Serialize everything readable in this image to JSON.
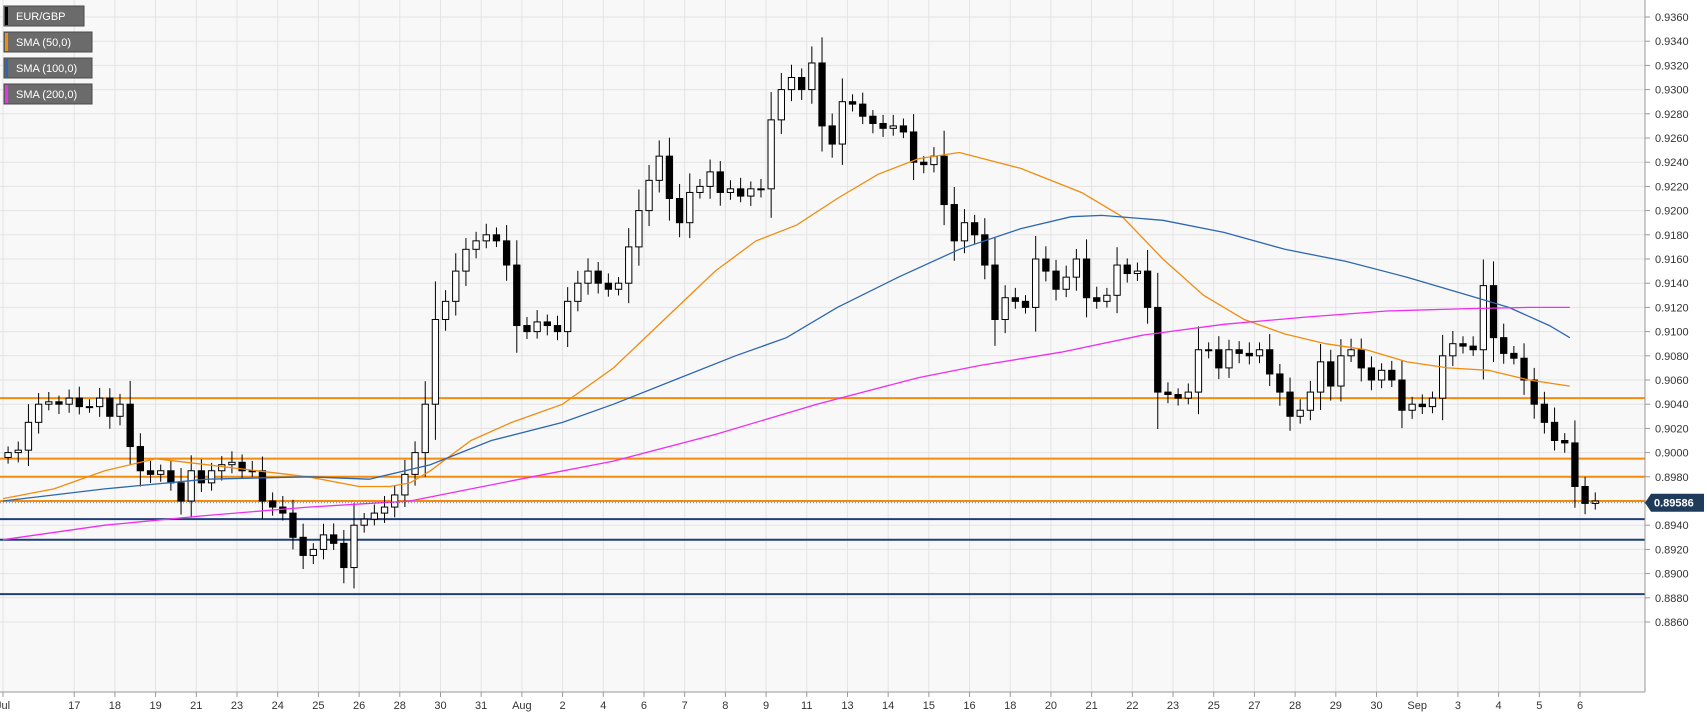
{
  "chart_data": {
    "type": "candlestick",
    "symbol": "EUR/GBP",
    "legend": [
      {
        "label": "EUR/GBP",
        "color": "#000000"
      },
      {
        "label": "SMA (50,0)",
        "color": "#f28c0f"
      },
      {
        "label": "SMA (100,0)",
        "color": "#2d67b0"
      },
      {
        "label": "SMA (200,0)",
        "color": "#ee2ef0"
      }
    ],
    "legend_position": "top-left",
    "last_price": "0.89586",
    "ylim": [
      0.885,
      0.937
    ],
    "y_ticks": [
      "0.9360",
      "0.9340",
      "0.9320",
      "0.9300",
      "0.9280",
      "0.9260",
      "0.9240",
      "0.9220",
      "0.9200",
      "0.9180",
      "0.9160",
      "0.9140",
      "0.9120",
      "0.9100",
      "0.9080",
      "0.9060",
      "0.9040",
      "0.9020",
      "0.9000",
      "0.8980",
      "0.8960",
      "0.8940",
      "0.8920",
      "0.8900",
      "0.8880",
      "0.8860"
    ],
    "x_ticks": [
      {
        "label": "Jul",
        "bar": 0
      },
      {
        "label": "17",
        "bar": 7
      },
      {
        "label": "18",
        "bar": 11
      },
      {
        "label": "19",
        "bar": 15
      },
      {
        "label": "21",
        "bar": 19
      },
      {
        "label": "23",
        "bar": 23
      },
      {
        "label": "24",
        "bar": 27
      },
      {
        "label": "25",
        "bar": 31
      },
      {
        "label": "26",
        "bar": 35
      },
      {
        "label": "28",
        "bar": 39
      },
      {
        "label": "30",
        "bar": 43
      },
      {
        "label": "31",
        "bar": 47
      },
      {
        "label": "Aug",
        "bar": 51
      },
      {
        "label": "2",
        "bar": 55
      },
      {
        "label": "4",
        "bar": 59
      },
      {
        "label": "6",
        "bar": 63
      },
      {
        "label": "7",
        "bar": 67
      },
      {
        "label": "8",
        "bar": 71
      },
      {
        "label": "9",
        "bar": 75
      },
      {
        "label": "11",
        "bar": 79
      },
      {
        "label": "13",
        "bar": 83
      },
      {
        "label": "14",
        "bar": 87
      },
      {
        "label": "15",
        "bar": 91
      },
      {
        "label": "16",
        "bar": 95
      },
      {
        "label": "18",
        "bar": 99
      },
      {
        "label": "20",
        "bar": 103
      },
      {
        "label": "21",
        "bar": 107
      },
      {
        "label": "22",
        "bar": 111
      },
      {
        "label": "23",
        "bar": 115
      },
      {
        "label": "25",
        "bar": 119
      },
      {
        "label": "27",
        "bar": 123
      },
      {
        "label": "28",
        "bar": 127
      },
      {
        "label": "29",
        "bar": 131
      },
      {
        "label": "30",
        "bar": 135
      },
      {
        "label": "Sep",
        "bar": 139
      },
      {
        "label": "3",
        "bar": 143
      },
      {
        "label": "4",
        "bar": 147
      },
      {
        "label": "5",
        "bar": 151
      },
      {
        "label": "6",
        "bar": 155
      }
    ],
    "horizontal_levels": [
      {
        "value": 0.9045,
        "color": "#f28c0f"
      },
      {
        "value": 0.8995,
        "color": "#f28c0f"
      },
      {
        "value": 0.898,
        "color": "#f28c0f"
      },
      {
        "value": 0.896,
        "color": "#f28c0f"
      },
      {
        "value": 0.8945,
        "color": "#1f3f7a"
      },
      {
        "value": 0.8928,
        "color": "#1f3f7a"
      },
      {
        "value": 0.8883,
        "color": "#1f3f7a"
      }
    ],
    "closes": [
      0.9,
      0.9002,
      0.9025,
      0.904,
      0.9042,
      0.904,
      0.9045,
      0.9038,
      0.9038,
      0.9045,
      0.903,
      0.904,
      0.9005,
      0.8985,
      0.8982,
      0.8985,
      0.8975,
      0.896,
      0.8985,
      0.8975,
      0.8985,
      0.899,
      0.8992,
      0.8985,
      0.8985,
      0.896,
      0.8955,
      0.895,
      0.893,
      0.8915,
      0.892,
      0.8932,
      0.8925,
      0.8905,
      0.894,
      0.8945,
      0.895,
      0.8955,
      0.8965,
      0.8982,
      0.9,
      0.904,
      0.911,
      0.9125,
      0.915,
      0.9168,
      0.9175,
      0.918,
      0.9175,
      0.9155,
      0.9105,
      0.91,
      0.9108,
      0.9105,
      0.91,
      0.9125,
      0.914,
      0.915,
      0.914,
      0.9135,
      0.914,
      0.917,
      0.92,
      0.9225,
      0.9245,
      0.921,
      0.919,
      0.9215,
      0.922,
      0.9232,
      0.9215,
      0.9218,
      0.9212,
      0.9218,
      0.9218,
      0.9275,
      0.93,
      0.931,
      0.93,
      0.9322,
      0.927,
      0.9255,
      0.929,
      0.9288,
      0.9278,
      0.9272,
      0.9268,
      0.927,
      0.9265,
      0.924,
      0.9238,
      0.9245,
      0.9205,
      0.9175,
      0.919,
      0.918,
      0.9155,
      0.911,
      0.9128,
      0.9125,
      0.912,
      0.916,
      0.915,
      0.9135,
      0.9145,
      0.916,
      0.9128,
      0.9125,
      0.913,
      0.9155,
      0.9148,
      0.915,
      0.912,
      0.905,
      0.9048,
      0.9045,
      0.905,
      0.9085,
      0.9085,
      0.907,
      0.9085,
      0.9082,
      0.908,
      0.9085,
      0.9065,
      0.905,
      0.903,
      0.9035,
      0.905,
      0.9075,
      0.9055,
      0.908,
      0.9085,
      0.907,
      0.906,
      0.9068,
      0.906,
      0.9035,
      0.904,
      0.9038,
      0.9045,
      0.908,
      0.909,
      0.9088,
      0.9085,
      0.9138,
      0.9095,
      0.9082,
      0.9078,
      0.906,
      0.904,
      0.9025,
      0.901,
      0.9008,
      0.8972,
      0.8958,
      0.896
    ],
    "series": [
      {
        "name": "SMA (50,0)",
        "color": "#f28c0f",
        "points": [
          [
            0,
            0.8962
          ],
          [
            5,
            0.897
          ],
          [
            10,
            0.8985
          ],
          [
            15,
            0.8995
          ],
          [
            20,
            0.899
          ],
          [
            25,
            0.8985
          ],
          [
            30,
            0.898
          ],
          [
            35,
            0.8972
          ],
          [
            38,
            0.8972
          ],
          [
            40,
            0.8975
          ],
          [
            42,
            0.8985
          ],
          [
            46,
            0.901
          ],
          [
            50,
            0.9025
          ],
          [
            55,
            0.904
          ],
          [
            60,
            0.907
          ],
          [
            65,
            0.911
          ],
          [
            70,
            0.915
          ],
          [
            74,
            0.9175
          ],
          [
            78,
            0.9188
          ],
          [
            82,
            0.921
          ],
          [
            86,
            0.923
          ],
          [
            90,
            0.9243
          ],
          [
            94,
            0.9248
          ],
          [
            100,
            0.9235
          ],
          [
            106,
            0.9215
          ],
          [
            110,
            0.9195
          ],
          [
            114,
            0.916
          ],
          [
            118,
            0.913
          ],
          [
            122,
            0.911
          ],
          [
            126,
            0.9098
          ],
          [
            130,
            0.909
          ],
          [
            134,
            0.9085
          ],
          [
            138,
            0.9075
          ],
          [
            142,
            0.907
          ],
          [
            146,
            0.9068
          ],
          [
            150,
            0.906
          ],
          [
            154,
            0.9055
          ]
        ]
      },
      {
        "name": "SMA (100,0)",
        "color": "#2d67b0",
        "points": [
          [
            0,
            0.896
          ],
          [
            10,
            0.897
          ],
          [
            20,
            0.8978
          ],
          [
            30,
            0.898
          ],
          [
            36,
            0.8978
          ],
          [
            42,
            0.899
          ],
          [
            48,
            0.901
          ],
          [
            55,
            0.9025
          ],
          [
            60,
            0.904
          ],
          [
            66,
            0.906
          ],
          [
            72,
            0.908
          ],
          [
            77,
            0.9095
          ],
          [
            82,
            0.912
          ],
          [
            88,
            0.9145
          ],
          [
            94,
            0.9168
          ],
          [
            100,
            0.9185
          ],
          [
            105,
            0.9195
          ],
          [
            108,
            0.9196
          ],
          [
            114,
            0.9192
          ],
          [
            120,
            0.9182
          ],
          [
            126,
            0.9168
          ],
          [
            132,
            0.9158
          ],
          [
            138,
            0.9145
          ],
          [
            144,
            0.913
          ],
          [
            148,
            0.912
          ],
          [
            152,
            0.9105
          ],
          [
            154,
            0.9095
          ]
        ]
      },
      {
        "name": "SMA (200,0)",
        "color": "#ee2ef0",
        "points": [
          [
            0,
            0.8928
          ],
          [
            10,
            0.894
          ],
          [
            20,
            0.8948
          ],
          [
            30,
            0.8955
          ],
          [
            40,
            0.896
          ],
          [
            46,
            0.897
          ],
          [
            52,
            0.898
          ],
          [
            60,
            0.8993
          ],
          [
            70,
            0.9015
          ],
          [
            80,
            0.904
          ],
          [
            90,
            0.9062
          ],
          [
            96,
            0.9072
          ],
          [
            104,
            0.9083
          ],
          [
            112,
            0.9097
          ],
          [
            120,
            0.9106
          ],
          [
            128,
            0.9112
          ],
          [
            136,
            0.9117
          ],
          [
            144,
            0.9119
          ],
          [
            150,
            0.912
          ],
          [
            154,
            0.912
          ]
        ]
      }
    ]
  }
}
